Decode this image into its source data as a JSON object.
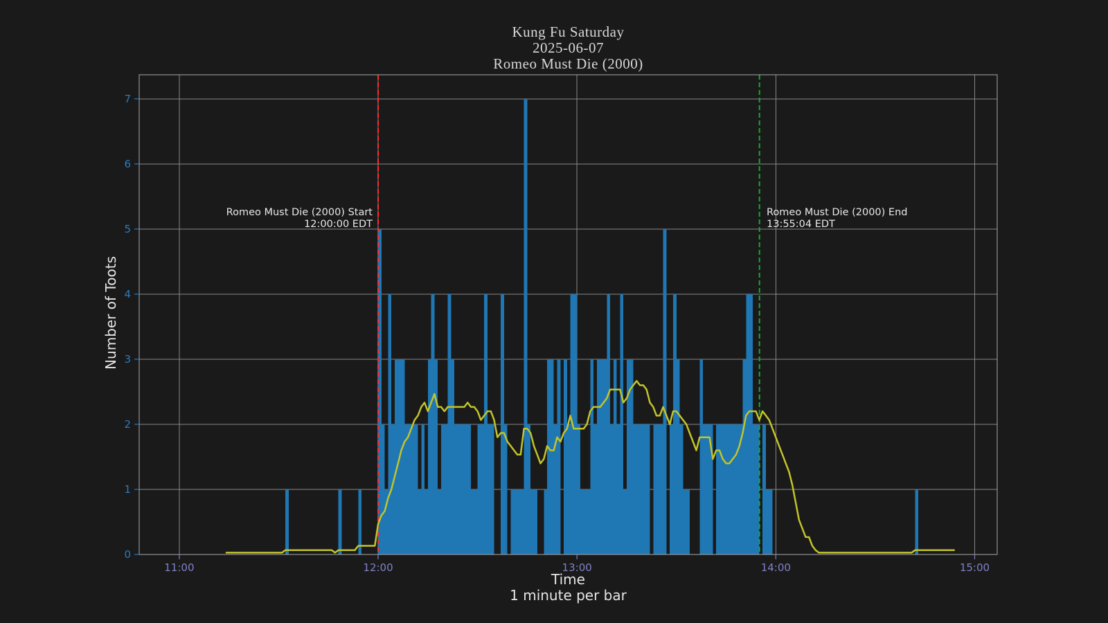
{
  "title": {
    "lines": [
      "Kung Fu Saturday",
      "2025-06-07",
      "Romeo Must Die (2000)"
    ]
  },
  "y_axis": {
    "label": "Number of Toots",
    "ticks": [
      "0",
      "1",
      "2",
      "3",
      "4",
      "5",
      "6",
      "7"
    ],
    "tick_color": "#2d7bbf"
  },
  "x_axis": {
    "label": "Time",
    "sublabel": "1 minute per bar",
    "ticks": [
      "11:00",
      "12:00",
      "13:00",
      "14:00",
      "15:00"
    ],
    "tick_color": "#8181c8"
  },
  "annotations": {
    "start": {
      "line1": "Romeo Must Die (2000) Start",
      "line2": "12:00:00 EDT"
    },
    "end": {
      "line1": "Romeo Must Die (2000) End",
      "line2": "13:55:04 EDT"
    }
  },
  "chart_data": {
    "type": "bar",
    "title": "Kung Fu Saturday 2025-06-07 Romeo Must Die (2000)",
    "xlabel": "Time",
    "ylabel": "Number of Toots",
    "x_start": "11:00",
    "x_interval_minutes": 1,
    "values": [
      0,
      0,
      0,
      0,
      0,
      0,
      0,
      0,
      0,
      0,
      0,
      0,
      0,
      0,
      0,
      0,
      0,
      0,
      0,
      0,
      0,
      0,
      0,
      0,
      0,
      0,
      0,
      0,
      0,
      0,
      0,
      0,
      1,
      0,
      0,
      0,
      0,
      0,
      0,
      0,
      0,
      0,
      0,
      0,
      0,
      0,
      0,
      0,
      1,
      0,
      0,
      0,
      0,
      0,
      1,
      0,
      0,
      0,
      0,
      0,
      5,
      2,
      1,
      4,
      2,
      3,
      3,
      3,
      2,
      2,
      2,
      2,
      1,
      2,
      1,
      3,
      4,
      3,
      1,
      2,
      2,
      4,
      3,
      2,
      2,
      2,
      2,
      2,
      1,
      1,
      2,
      2,
      4,
      2,
      2,
      0,
      0,
      4,
      2,
      0,
      1,
      1,
      1,
      1,
      7,
      2,
      1,
      1,
      0,
      0,
      1,
      3,
      3,
      2,
      3,
      0,
      3,
      2,
      4,
      4,
      2,
      1,
      1,
      1,
      3,
      2,
      3,
      3,
      3,
      4,
      2,
      3,
      2,
      4,
      1,
      3,
      3,
      2,
      2,
      2,
      2,
      2,
      0,
      2,
      2,
      2,
      5,
      0,
      2,
      4,
      3,
      2,
      1,
      1,
      0,
      0,
      0,
      3,
      2,
      2,
      2,
      0,
      2,
      2,
      2,
      2,
      2,
      2,
      2,
      2,
      3,
      4,
      4,
      2,
      2,
      0,
      2,
      1,
      1,
      0,
      0,
      0,
      0,
      0,
      0,
      0,
      0,
      0,
      0,
      0,
      0,
      0,
      0,
      0,
      0,
      0,
      0,
      0,
      0,
      0,
      0,
      0,
      0,
      0,
      0,
      0,
      0,
      0,
      0,
      0,
      0,
      0,
      0,
      0,
      0,
      0,
      0,
      0,
      0,
      0,
      0,
      0,
      1,
      0,
      0,
      0,
      0,
      0,
      0,
      0,
      0,
      0,
      0,
      0,
      0
    ],
    "bar_color": "#1f77b4",
    "line": {
      "description": "15-minute trailing rolling mean",
      "window_minutes": 15,
      "color": "#c3c429"
    },
    "markers": [
      {
        "name": "start",
        "time": "12:00:00",
        "color": "#ff2a2a",
        "style": "dashed"
      },
      {
        "name": "end",
        "time": "13:55:04",
        "color": "#18a92b",
        "style": "dashed"
      }
    ],
    "ylim": [
      0,
      7.37
    ],
    "xlim_minutes_of_day": [
      647.9,
      906.8
    ],
    "xticks_minutes_of_day": [
      660,
      720,
      780,
      840,
      900
    ],
    "yticks": [
      0,
      1,
      2,
      3,
      4,
      5,
      6,
      7
    ],
    "grid": true
  },
  "colors": {
    "background": "#1a1a1a",
    "grid": "#949494",
    "spine": "#a8a8a8",
    "text": "#e6e6e6",
    "title": "#d8d8d8"
  }
}
